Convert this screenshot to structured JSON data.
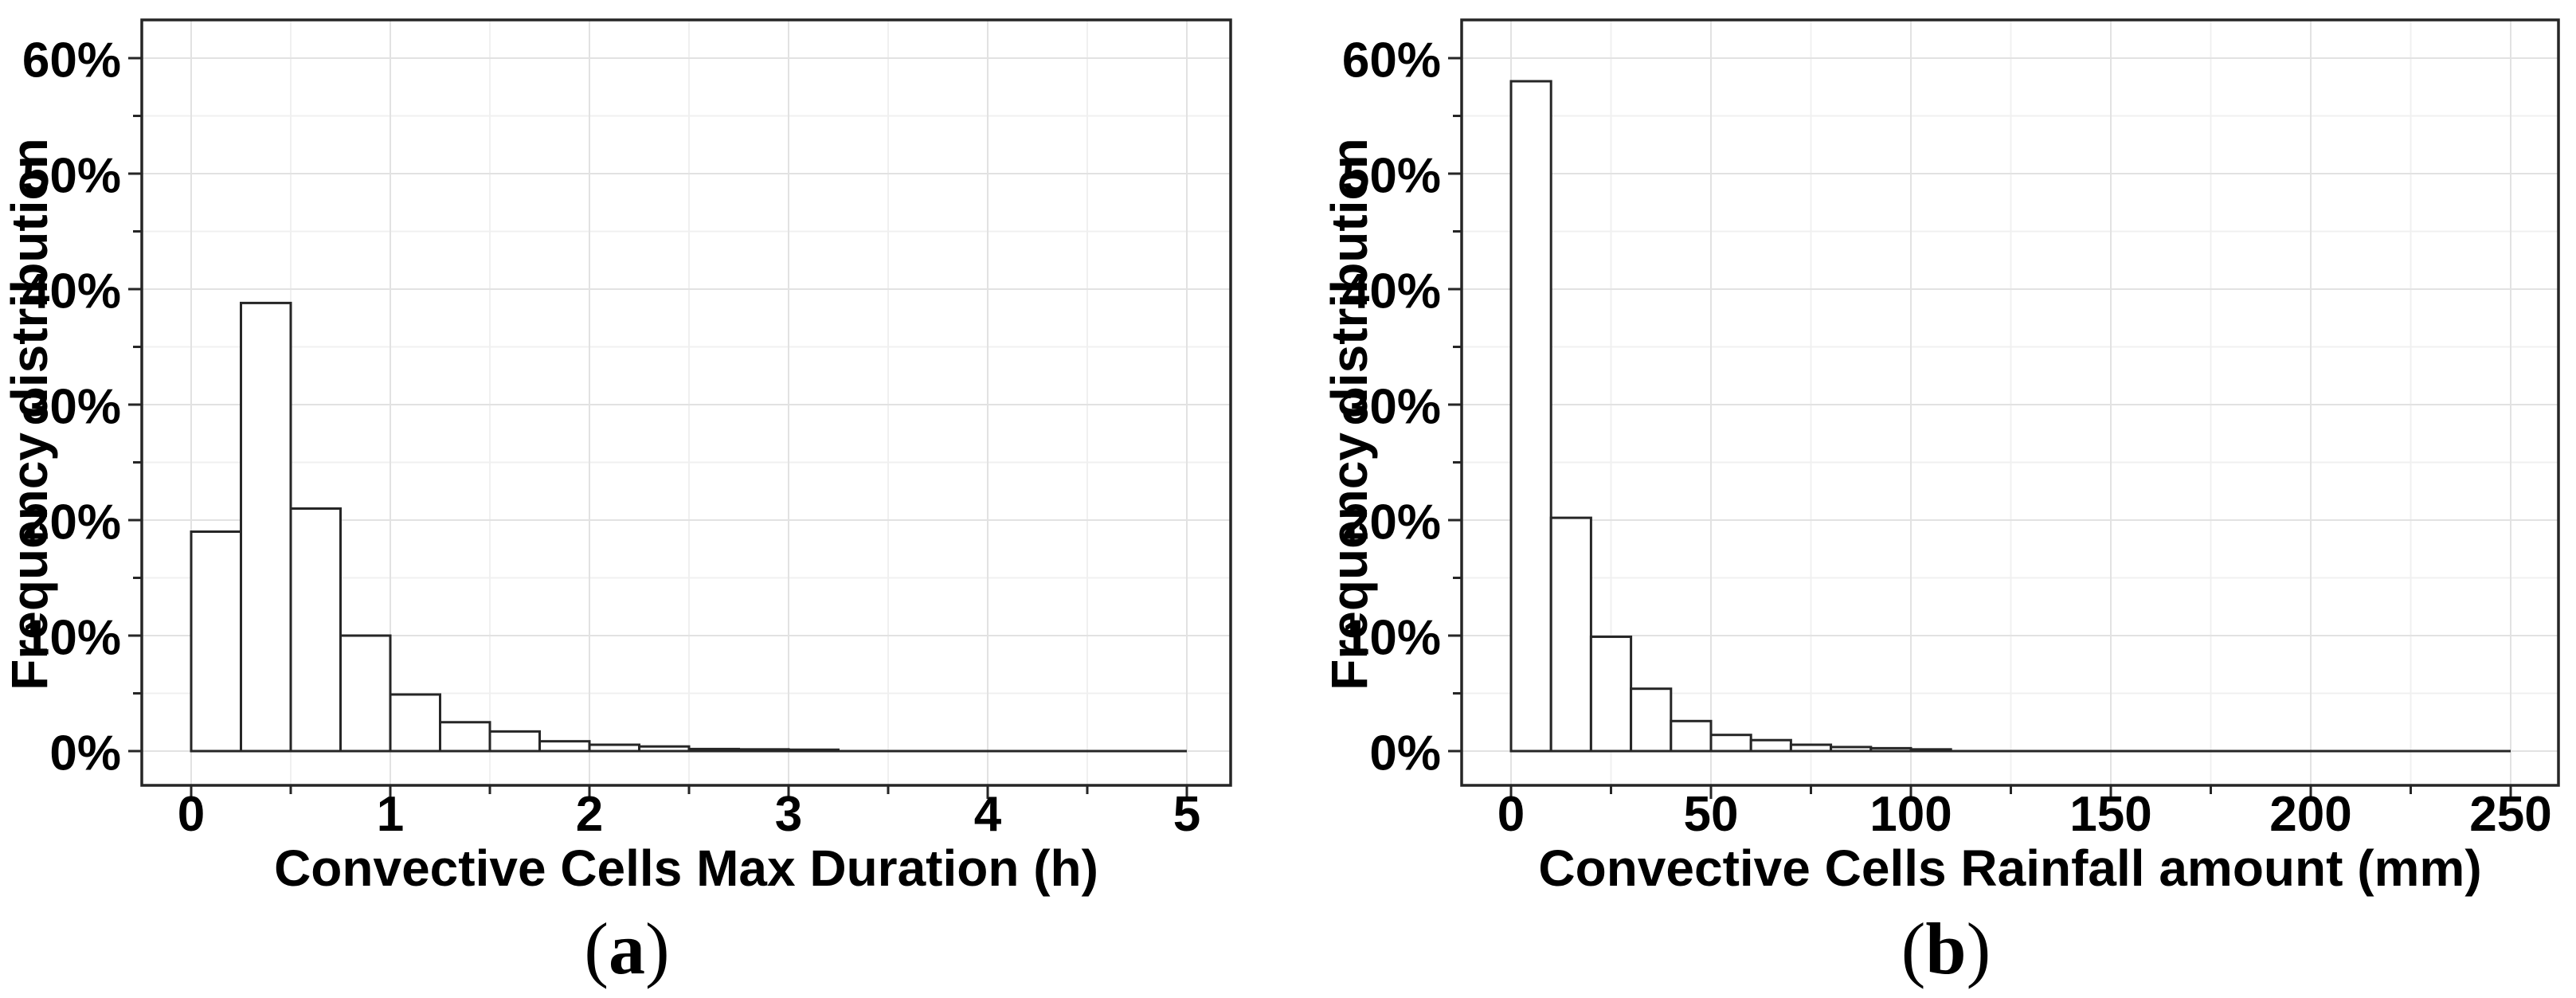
{
  "figure_background": "#ffffff",
  "colors": {
    "text": "#000000",
    "axis_line": "#262626",
    "bar_fill": "#ffffff",
    "bar_stroke": "#262626",
    "grid_major": "#e2e2e2",
    "grid_minor": "#f0f0f0"
  },
  "panels": [
    {
      "id": "a",
      "y_title": "Frequency distribution",
      "x_title": "Convective Cells Max Duration (h)",
      "x_major": [
        0,
        1,
        2,
        3,
        4,
        5
      ],
      "x_major_labels": [
        "0",
        "1",
        "2",
        "3",
        "4",
        "5"
      ],
      "x_minor": [
        0.5,
        1.5,
        2.5,
        3.5,
        4.5
      ],
      "y_major": [
        0,
        10,
        20,
        30,
        40,
        50,
        60
      ],
      "y_major_labels": [
        "0%",
        "10%",
        "20%",
        "30%",
        "40%",
        "50%",
        "60%"
      ],
      "y_minor": [
        5,
        15,
        25,
        35,
        45,
        55
      ],
      "caption": {
        "pre": "(",
        "letter": "a",
        "post": ")"
      }
    },
    {
      "id": "b",
      "y_title": "Frequency distribution",
      "x_title": "Convective Cells Rainfall amount (mm)",
      "x_major": [
        0,
        50,
        100,
        150,
        200,
        250
      ],
      "x_major_labels": [
        "0",
        "50",
        "100",
        "150",
        "200",
        "250"
      ],
      "x_minor": [
        25,
        75,
        125,
        175,
        225
      ],
      "y_major": [
        0,
        10,
        20,
        30,
        40,
        50,
        60
      ],
      "y_major_labels": [
        "0%",
        "10%",
        "20%",
        "30%",
        "40%",
        "50%",
        "60%"
      ],
      "y_minor": [
        5,
        15,
        25,
        35,
        45,
        55
      ],
      "caption": {
        "pre": "(",
        "letter": "b",
        "post": ")"
      }
    }
  ],
  "chart_data": [
    {
      "type": "bar",
      "subtype": "histogram",
      "title": "",
      "xlabel": "Convective Cells Max Duration (h)",
      "ylabel": "Frequency distribution",
      "legend": false,
      "grid": true,
      "bin_start": 0,
      "bin_width": 0.25,
      "bin_unit": "h",
      "values_percent": [
        19.0,
        38.8,
        21.0,
        10.0,
        4.9,
        2.5,
        1.7,
        0.85,
        0.55,
        0.4,
        0.18,
        0.15,
        0.12,
        0,
        0,
        0,
        0,
        0,
        0,
        0
      ],
      "xlim": [
        0,
        5.2
      ],
      "ylim": [
        0,
        63
      ],
      "y_tick_format": "percent"
    },
    {
      "type": "bar",
      "subtype": "histogram",
      "title": "",
      "xlabel": "Convective Cells Rainfall amount (mm)",
      "ylabel": "Frequency distribution",
      "legend": false,
      "grid": true,
      "bin_start": 0,
      "bin_width": 10,
      "bin_unit": "mm",
      "values_percent": [
        58.0,
        20.2,
        9.9,
        5.4,
        2.6,
        1.4,
        0.95,
        0.55,
        0.35,
        0.25,
        0.15,
        0,
        0,
        0,
        0,
        0,
        0,
        0,
        0,
        0,
        0,
        0,
        0,
        0,
        0
      ],
      "xlim": [
        0,
        262
      ],
      "ylim": [
        0,
        63
      ],
      "y_tick_format": "percent"
    }
  ]
}
